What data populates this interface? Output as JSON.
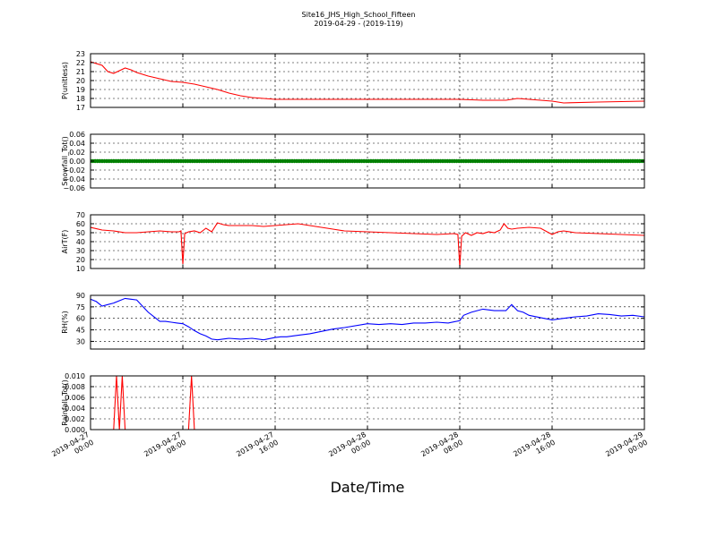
{
  "chart_data": {
    "type": "line",
    "title": "Site16_JHS_High_School_Fifteen",
    "subtitle": "2019-04-29 - (2019-119)",
    "xlabel": "Date/Time",
    "x_range": [
      "2019-04-27 00:00",
      "2019-04-29 00:00"
    ],
    "x_ticks": [
      {
        "t": "2019-04-27 00:00",
        "l1": "2019-04-27",
        "l2": "00:00"
      },
      {
        "t": "2019-04-27 08:00",
        "l1": "2019-04-27",
        "l2": "08:00"
      },
      {
        "t": "2019-04-27 16:00",
        "l1": "2019-04-27",
        "l2": "16:00"
      },
      {
        "t": "2019-04-28 00:00",
        "l1": "2019-04-28",
        "l2": "00:00"
      },
      {
        "t": "2019-04-28 08:00",
        "l1": "2019-04-28",
        "l2": "08:00"
      },
      {
        "t": "2019-04-28 16:00",
        "l1": "2019-04-28",
        "l2": "16:00"
      },
      {
        "t": "2019-04-29 00:00",
        "l1": "2019-04-29",
        "l2": "00:00"
      }
    ],
    "grid": true,
    "panels": [
      {
        "ylabel": "P(unitless)",
        "ylim": [
          17,
          23
        ],
        "yticks": [
          17,
          18,
          19,
          20,
          21,
          22,
          23
        ],
        "ytick_labels": [
          "17",
          "18",
          "19",
          "20",
          "21",
          "22",
          "23"
        ],
        "series": [
          {
            "color": "#ff0000",
            "style": "line",
            "x": [
              "2019-04-27 00:00",
              "2019-04-27 01:00",
              "2019-04-27 01:30",
              "2019-04-27 02:00",
              "2019-04-27 02:30",
              "2019-04-27 03:00",
              "2019-04-27 03:30",
              "2019-04-27 04:00",
              "2019-04-27 05:00",
              "2019-04-27 06:00",
              "2019-04-27 07:00",
              "2019-04-27 08:00",
              "2019-04-27 09:00",
              "2019-04-27 10:00",
              "2019-04-27 11:00",
              "2019-04-27 12:00",
              "2019-04-27 13:00",
              "2019-04-27 14:00",
              "2019-04-27 15:00",
              "2019-04-27 16:00",
              "2019-04-27 17:00",
              "2019-04-27 20:00",
              "2019-04-28 00:00",
              "2019-04-28 04:00",
              "2019-04-28 08:00",
              "2019-04-28 10:00",
              "2019-04-28 12:00",
              "2019-04-28 13:00",
              "2019-04-28 14:00",
              "2019-04-28 15:00",
              "2019-04-28 16:00",
              "2019-04-28 17:00",
              "2019-04-28 20:00",
              "2019-04-29 00:00"
            ],
            "y": [
              22.1,
              21.7,
              21.0,
              20.8,
              21.1,
              21.4,
              21.2,
              20.9,
              20.5,
              20.2,
              19.9,
              19.8,
              19.6,
              19.3,
              19.0,
              18.6,
              18.3,
              18.1,
              18.0,
              17.9,
              17.9,
              17.9,
              17.9,
              17.9,
              17.9,
              17.8,
              17.8,
              18.0,
              17.9,
              17.8,
              17.7,
              17.5,
              17.6,
              17.7
            ]
          }
        ]
      },
      {
        "ylabel": "Snowfall_Tot()",
        "ylim": [
          -0.06,
          0.06
        ],
        "yticks": [
          -0.06,
          -0.04,
          -0.02,
          0.0,
          0.02,
          0.04,
          0.06
        ],
        "ytick_labels": [
          "−0.06",
          "−0.04",
          "−0.02",
          "0.00",
          "0.02",
          "0.04",
          "0.06"
        ],
        "series": [
          {
            "color": "#008000",
            "style": "dots",
            "x_start": "2019-04-27 00:00",
            "x_end": "2019-04-29 00:00",
            "constant": 0.0,
            "n_points": 240
          }
        ]
      },
      {
        "ylabel": "AirT(F)",
        "ylim": [
          10,
          70
        ],
        "yticks": [
          10,
          20,
          30,
          40,
          50,
          60,
          70
        ],
        "ytick_labels": [
          "10",
          "20",
          "30",
          "40",
          "50",
          "60",
          "70"
        ],
        "series": [
          {
            "color": "#ff0000",
            "style": "line",
            "x": [
              "2019-04-27 00:00",
              "2019-04-27 01:00",
              "2019-04-27 02:00",
              "2019-04-27 03:00",
              "2019-04-27 04:00",
              "2019-04-27 05:00",
              "2019-04-27 06:00",
              "2019-04-27 07:00",
              "2019-04-27 07:40",
              "2019-04-27 07:50",
              "2019-04-27 08:00",
              "2019-04-27 08:10",
              "2019-04-27 08:30",
              "2019-04-27 09:00",
              "2019-04-27 09:30",
              "2019-04-27 10:00",
              "2019-04-27 10:30",
              "2019-04-27 11:00",
              "2019-04-27 11:30",
              "2019-04-27 12:00",
              "2019-04-27 13:00",
              "2019-04-27 14:00",
              "2019-04-27 15:00",
              "2019-04-27 16:00",
              "2019-04-27 17:00",
              "2019-04-27 18:00",
              "2019-04-27 19:00",
              "2019-04-27 20:00",
              "2019-04-27 21:00",
              "2019-04-27 22:00",
              "2019-04-28 00:00",
              "2019-04-28 02:00",
              "2019-04-28 04:00",
              "2019-04-28 06:00",
              "2019-04-28 07:30",
              "2019-04-28 07:50",
              "2019-04-28 08:00",
              "2019-04-28 08:10",
              "2019-04-28 08:30",
              "2019-04-28 09:00",
              "2019-04-28 09:30",
              "2019-04-28 10:00",
              "2019-04-28 10:30",
              "2019-04-28 11:00",
              "2019-04-28 11:30",
              "2019-04-28 11:50",
              "2019-04-28 12:10",
              "2019-04-28 12:30",
              "2019-04-28 13:00",
              "2019-04-28 14:00",
              "2019-04-28 15:00",
              "2019-04-28 16:00",
              "2019-04-28 16:30",
              "2019-04-28 17:00",
              "2019-04-28 18:00",
              "2019-04-28 20:00",
              "2019-04-28 22:00",
              "2019-04-29 00:00"
            ],
            "y": [
              56,
              53,
              52,
              50,
              50,
              51,
              52,
              51,
              51,
              52,
              15,
              49,
              51,
              52,
              50,
              55,
              51,
              61,
              59,
              58,
              58,
              58,
              57,
              58,
              59,
              60,
              58,
              56,
              54,
              52,
              51,
              50,
              49,
              48,
              49,
              48,
              12,
              46,
              50,
              47,
              50,
              49,
              51,
              50,
              53,
              60,
              55,
              54,
              55,
              56,
              55,
              48,
              51,
              52,
              50,
              49,
              48,
              47
            ]
          }
        ]
      },
      {
        "ylabel": "RH(%)",
        "ylim": [
          20,
          90
        ],
        "yticks": [
          30,
          45,
          60,
          75,
          90
        ],
        "ytick_labels": [
          "30",
          "45",
          "60",
          "75",
          "90"
        ],
        "series": [
          {
            "color": "#0000ff",
            "style": "line",
            "x": [
              "2019-04-27 00:00",
              "2019-04-27 00:30",
              "2019-04-27 01:00",
              "2019-04-27 01:30",
              "2019-04-27 02:00",
              "2019-04-27 02:30",
              "2019-04-27 03:00",
              "2019-04-27 03:30",
              "2019-04-27 04:00",
              "2019-04-27 04:30",
              "2019-04-27 05:00",
              "2019-04-27 06:00",
              "2019-04-27 06:30",
              "2019-04-27 07:00",
              "2019-04-27 07:30",
              "2019-04-27 08:00",
              "2019-04-27 08:30",
              "2019-04-27 09:00",
              "2019-04-27 09:30",
              "2019-04-27 10:00",
              "2019-04-27 10:30",
              "2019-04-27 11:00",
              "2019-04-27 12:00",
              "2019-04-27 13:00",
              "2019-04-27 14:00",
              "2019-04-27 15:00",
              "2019-04-27 16:00",
              "2019-04-27 16:30",
              "2019-04-27 17:00",
              "2019-04-27 18:00",
              "2019-04-27 19:00",
              "2019-04-27 20:00",
              "2019-04-27 21:00",
              "2019-04-27 22:00",
              "2019-04-28 00:00",
              "2019-04-28 01:00",
              "2019-04-28 02:00",
              "2019-04-28 03:00",
              "2019-04-28 04:00",
              "2019-04-28 05:00",
              "2019-04-28 06:00",
              "2019-04-28 07:00",
              "2019-04-28 08:00",
              "2019-04-28 08:20",
              "2019-04-28 09:00",
              "2019-04-28 10:00",
              "2019-04-28 11:00",
              "2019-04-28 12:00",
              "2019-04-28 12:30",
              "2019-04-28 13:00",
              "2019-04-28 13:30",
              "2019-04-28 14:00",
              "2019-04-28 15:00",
              "2019-04-28 16:00",
              "2019-04-28 17:00",
              "2019-04-28 18:00",
              "2019-04-28 19:00",
              "2019-04-28 20:00",
              "2019-04-28 21:00",
              "2019-04-28 22:00",
              "2019-04-28 23:00",
              "2019-04-29 00:00"
            ],
            "y": [
              85,
              82,
              76,
              78,
              80,
              83,
              86,
              85,
              84,
              76,
              68,
              56,
              56,
              55,
              54,
              53,
              49,
              44,
              40,
              37,
              33,
              32,
              34,
              33,
              34,
              32,
              35,
              36,
              36,
              38,
              40,
              43,
              46,
              48,
              53,
              52,
              53,
              52,
              54,
              54,
              55,
              54,
              57,
              64,
              68,
              72,
              70,
              70,
              78,
              70,
              68,
              64,
              61,
              58,
              60,
              62,
              63,
              66,
              65,
              63,
              64,
              62
            ]
          }
        ]
      },
      {
        "ylabel": "Rainfall_Tot()",
        "ylim": [
          0.0,
          0.01
        ],
        "yticks": [
          0.0,
          0.002,
          0.004,
          0.006,
          0.008,
          0.01
        ],
        "ytick_labels": [
          "0.000",
          "0.002",
          "0.004",
          "0.006",
          "0.008",
          "0.010"
        ],
        "series": [
          {
            "color": "#ff0000",
            "style": "line",
            "x": [
              "2019-04-27 00:00",
              "2019-04-27 02:00",
              "2019-04-27 02:15",
              "2019-04-27 02:30",
              "2019-04-27 02:45",
              "2019-04-27 03:00",
              "2019-04-27 03:15",
              "2019-04-27 08:30",
              "2019-04-27 08:45",
              "2019-04-27 09:00",
              "2019-04-29 00:00"
            ],
            "y": [
              0,
              0,
              0.01,
              0,
              0.01,
              0,
              0,
              0,
              0.01,
              0,
              0
            ]
          }
        ]
      }
    ]
  }
}
